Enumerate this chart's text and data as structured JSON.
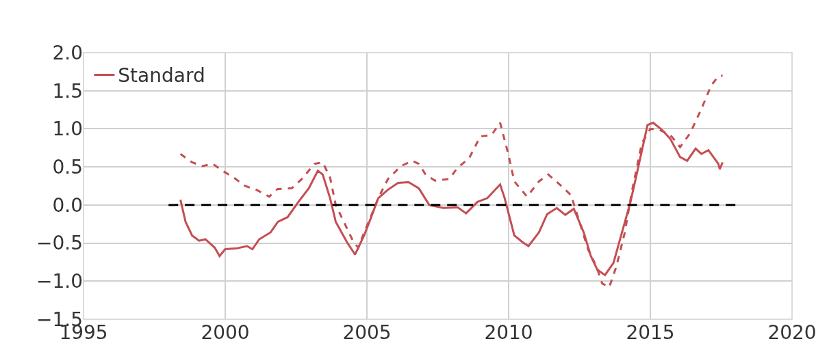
{
  "chart_data": {
    "type": "line",
    "xlim": [
      1995,
      2020
    ],
    "xticks": [
      1995,
      2000,
      2005,
      2010,
      2015,
      2020
    ],
    "ylim": [
      -1.5,
      2.0
    ],
    "yticks": [
      {
        "value": -1.5,
        "label": "−1.5"
      },
      {
        "value": -1.0,
        "label": "−1.0"
      },
      {
        "value": -0.5,
        "label": "−0.5"
      },
      {
        "value": 0,
        "label": "0.0"
      },
      {
        "value": 0.5,
        "label": "0.5"
      },
      {
        "value": 1.0,
        "label": "1.0"
      },
      {
        "value": 1.5,
        "label": "1.5"
      },
      {
        "value": 2.0,
        "label": "2.0"
      }
    ],
    "grid": true,
    "legend": "top left",
    "marker": "none",
    "series": [
      {
        "name": "Standard",
        "color": "#c44e52",
        "line_style": "solid",
        "x": [
          1998.42,
          1998.6,
          1998.83,
          1999.08,
          1999.3,
          1999.63,
          1999.8,
          2000.0,
          2000.4,
          2000.77,
          2000.96,
          2001.2,
          2001.6,
          2001.86,
          2002.2,
          2002.6,
          2002.95,
          2003.27,
          2003.44,
          2003.7,
          2003.9,
          2004.3,
          2004.58,
          2004.9,
          2005.13,
          2005.4,
          2005.74,
          2006.1,
          2006.47,
          2006.83,
          2007.2,
          2007.7,
          2008.2,
          2008.5,
          2008.9,
          2009.25,
          2009.7,
          2009.86,
          2010.2,
          2010.5,
          2010.7,
          2011.07,
          2011.36,
          2011.7,
          2012.0,
          2012.3,
          2012.65,
          2012.9,
          2013.13,
          2013.4,
          2013.7,
          2014.0,
          2014.3,
          2014.6,
          2014.9,
          2015.1,
          2015.4,
          2015.7,
          2016.05,
          2016.3,
          2016.6,
          2016.8,
          2017.05,
          2017.4,
          2017.45,
          2017.55
        ],
        "values": [
          0.07,
          -0.22,
          -0.4,
          -0.47,
          -0.45,
          -0.56,
          -0.67,
          -0.58,
          -0.57,
          -0.54,
          -0.58,
          -0.45,
          -0.36,
          -0.22,
          -0.16,
          0.05,
          0.22,
          0.45,
          0.4,
          0.09,
          -0.22,
          -0.49,
          -0.65,
          -0.4,
          -0.18,
          0.09,
          0.2,
          0.29,
          0.3,
          0.22,
          0.0,
          -0.04,
          -0.03,
          -0.11,
          0.04,
          0.09,
          0.27,
          0.09,
          -0.4,
          -0.49,
          -0.54,
          -0.36,
          -0.12,
          -0.04,
          -0.13,
          -0.05,
          -0.36,
          -0.67,
          -0.85,
          -0.92,
          -0.76,
          -0.36,
          0.04,
          0.54,
          1.05,
          1.08,
          0.99,
          0.87,
          0.63,
          0.58,
          0.74,
          0.67,
          0.72,
          0.54,
          0.47,
          0.56
        ]
      },
      {
        "color": "#c44e52",
        "line_style": "dashed",
        "x": [
          1998.42,
          1998.83,
          1999.2,
          1999.56,
          1999.9,
          2000.3,
          2000.7,
          2001.1,
          2001.55,
          2001.85,
          2002.35,
          2002.7,
          2003.15,
          2003.44,
          2003.7,
          2003.9,
          2004.3,
          2004.53,
          2004.7,
          2004.9,
          2005.13,
          2005.4,
          2005.74,
          2006.2,
          2006.6,
          2006.83,
          2007.07,
          2007.4,
          2007.9,
          2008.2,
          2008.6,
          2009.0,
          2009.4,
          2009.7,
          2010.0,
          2010.2,
          2010.65,
          2011.07,
          2011.4,
          2011.8,
          2012.2,
          2012.5,
          2012.8,
          2013.1,
          2013.3,
          2013.55,
          2013.8,
          2014.1,
          2014.35,
          2014.7,
          2015.0,
          2015.3,
          2015.7,
          2016.05,
          2016.4,
          2016.8,
          2017.15,
          2017.4,
          2017.55
        ],
        "values": [
          0.67,
          0.56,
          0.51,
          0.54,
          0.45,
          0.36,
          0.25,
          0.2,
          0.11,
          0.21,
          0.22,
          0.34,
          0.54,
          0.56,
          0.36,
          0.0,
          -0.31,
          -0.49,
          -0.56,
          -0.36,
          -0.16,
          0.09,
          0.34,
          0.51,
          0.58,
          0.54,
          0.4,
          0.32,
          0.34,
          0.49,
          0.61,
          0.9,
          0.92,
          1.08,
          0.65,
          0.31,
          0.11,
          0.31,
          0.4,
          0.27,
          0.13,
          -0.22,
          -0.58,
          -0.81,
          -1.03,
          -1.08,
          -0.81,
          -0.36,
          0.18,
          0.81,
          1.0,
          0.99,
          0.92,
          0.76,
          0.94,
          1.26,
          1.57,
          1.69,
          1.7
        ]
      },
      {
        "color": "#000000",
        "line_style": "dashed",
        "x": [
          1998,
          2018
        ],
        "values": [
          0,
          0
        ]
      }
    ]
  }
}
